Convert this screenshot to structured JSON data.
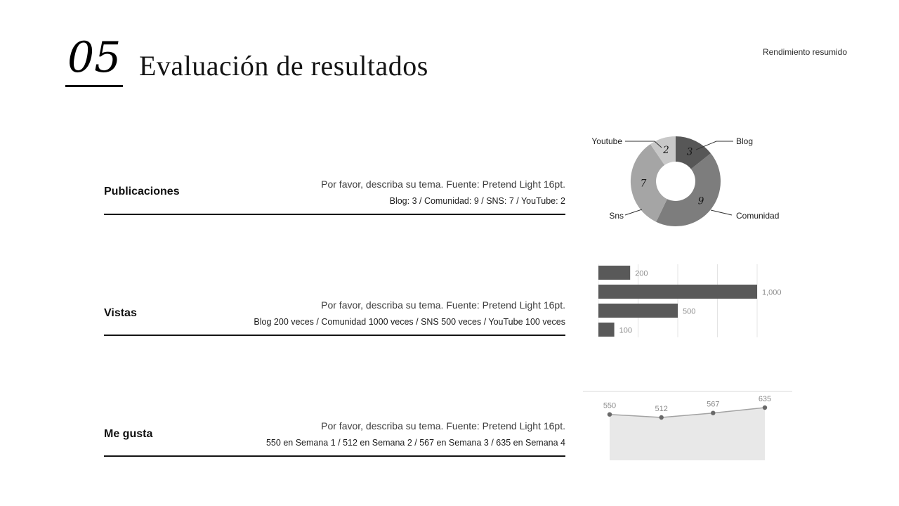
{
  "header": {
    "number": "05",
    "title": "Evaluación de resultados",
    "corner_note": "Rendimiento resumido"
  },
  "sections": [
    {
      "label": "Publicaciones",
      "desc1": "Por favor, describa su tema. Fuente: Pretend Light 16pt.",
      "desc2": "Blog: 3 / Comunidad: 9 / SNS: 7 / YouTube: 2"
    },
    {
      "label": "Vistas",
      "desc1": "Por favor, describa su tema. Fuente: Pretend Light 16pt.",
      "desc2": "Blog 200 veces / Comunidad 1000 veces / SNS 500 veces / YouTube 100 veces"
    },
    {
      "label": "Me gusta",
      "desc1": "Por favor, describa su tema. Fuente: Pretend Light 16pt.",
      "desc2": "550 en Semana 1 / 512 en Semana 2 / 567 en Semana 3 / 635 en Semana 4"
    }
  ],
  "chart_data": [
    {
      "type": "pie",
      "donut": true,
      "title": "Publicaciones",
      "labels": [
        "Blog",
        "Comunidad",
        "Sns",
        "Youtube"
      ],
      "values": [
        3,
        9,
        7,
        2
      ],
      "value_labels": [
        "3",
        "9",
        "7",
        "2"
      ],
      "colors": [
        "#575757",
        "#7d7d7d",
        "#a5a5a5",
        "#c8c8c8"
      ],
      "legend_position": "outside-callouts"
    },
    {
      "type": "bar",
      "orientation": "horizontal",
      "title": "Vistas",
      "categories": [
        "Blog",
        "Comunidad",
        "SNS",
        "YouTube"
      ],
      "values": [
        200,
        1000,
        500,
        100
      ],
      "value_labels": [
        "200",
        "1,000",
        "500",
        "100"
      ],
      "xlim": [
        0,
        1000
      ],
      "gridline_step": 250,
      "color": "#595959",
      "grid": true
    },
    {
      "type": "area",
      "title": "Me gusta",
      "categories": [
        "Semana 1",
        "Semana 2",
        "Semana 3",
        "Semana 4"
      ],
      "values": [
        550,
        512,
        567,
        635
      ],
      "value_labels": [
        "550",
        "512",
        "567",
        "635"
      ],
      "fill": "#e8e8e8",
      "line": "#a3a3a3",
      "dot": "#696969",
      "grid": true
    }
  ]
}
